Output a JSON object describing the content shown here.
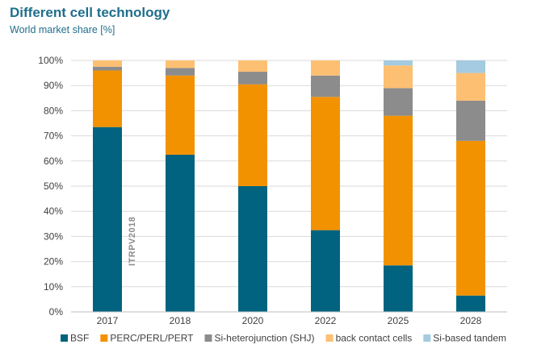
{
  "header": {
    "title": "Different cell technology",
    "subtitle": "World market share [%]"
  },
  "watermark": "ITRPV2018",
  "chart_data": {
    "type": "bar",
    "stacked": true,
    "categories": [
      "2017",
      "2018",
      "2020",
      "2022",
      "2025",
      "2028"
    ],
    "series": [
      {
        "name": "BSF",
        "color": "#01637f",
        "values": [
          73.5,
          62.5,
          50,
          32.5,
          18.5,
          6.5
        ]
      },
      {
        "name": "PERC/PERL/PERT",
        "color": "#f39200",
        "values": [
          22.5,
          31.5,
          40.5,
          53,
          59.5,
          61.5
        ]
      },
      {
        "name": "Si-heterojunction (SHJ)",
        "color": "#8c8c8c",
        "values": [
          1.5,
          3,
          5,
          8.5,
          11,
          16
        ]
      },
      {
        "name": "back contact cells",
        "color": "#fdbf72",
        "values": [
          2.5,
          3,
          4.5,
          6,
          9,
          11
        ]
      },
      {
        "name": "Si-based tandem",
        "color": "#a4cbe0",
        "values": [
          0,
          0,
          0,
          0,
          2,
          5
        ]
      }
    ],
    "yticks": [
      "0%",
      "10%",
      "20%",
      "30%",
      "40%",
      "50%",
      "60%",
      "70%",
      "80%",
      "90%",
      "100%"
    ],
    "ylim": [
      0,
      100
    ],
    "grid": true,
    "legend_position": "bottom"
  }
}
